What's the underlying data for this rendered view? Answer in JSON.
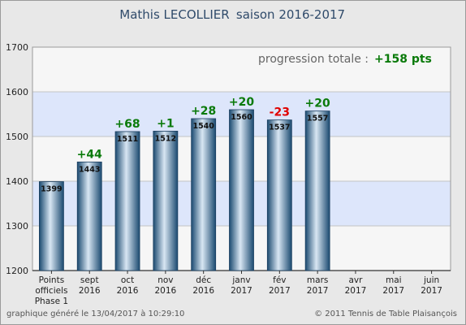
{
  "chart_data": {
    "type": "bar",
    "title": "Mathis LECOLLIER",
    "subtitle": "saison 2016-2017",
    "categories": [
      [
        "Points",
        "officiels",
        "Phase 1"
      ],
      [
        "sept",
        "2016"
      ],
      [
        "oct",
        "2016"
      ],
      [
        "nov",
        "2016"
      ],
      [
        "déc",
        "2016"
      ],
      [
        "janv",
        "2017"
      ],
      [
        "fév",
        "2017"
      ],
      [
        "mars",
        "2017"
      ],
      [
        "avr",
        "2017"
      ],
      [
        "mai",
        "2017"
      ],
      [
        "juin",
        "2017"
      ]
    ],
    "values": [
      1399,
      1443,
      1511,
      1512,
      1540,
      1560,
      1537,
      1557,
      null,
      null,
      null
    ],
    "value_labels": [
      "1399",
      "1443",
      "1511",
      "1512",
      "1540",
      "1560",
      "1537",
      "1557",
      null,
      null,
      null
    ],
    "deltas": [
      null,
      "+44",
      "+68",
      "+1",
      "+28",
      "+20",
      "-23",
      "+20",
      null,
      null,
      null
    ],
    "ylim": [
      1200,
      1700
    ],
    "yticks": [
      1200,
      1300,
      1400,
      1500,
      1600,
      1700
    ],
    "xlabel": "",
    "ylabel": "",
    "grid": true,
    "progression_label": "progression totale :",
    "progression_value": "+158 pts",
    "footer_left": "graphique généré le 13/04/2017 à 10:29:10",
    "footer_right": "© 2011 Tennis de Table Plaisançois",
    "colors": {
      "background": "#e8e8e8",
      "band_light": "#f6f6f6",
      "band_blue": "#dde6fb",
      "bar_dark": "#1b4a70",
      "bar_light": "#d8e6f3",
      "positive": "#0a7a0a",
      "negative": "#e00000",
      "title": "#2f4a6a",
      "text": "#222222",
      "footer": "#555555"
    }
  }
}
